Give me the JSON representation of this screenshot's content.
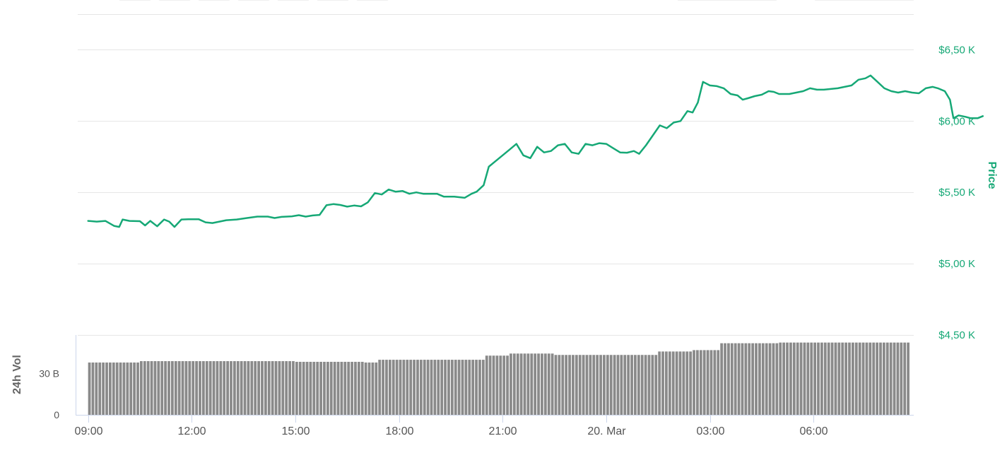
{
  "colors": {
    "price_line": "#16a876",
    "volume_bar": "#8a8a8a",
    "grid": "#e6e6e6"
  },
  "chart_data": [
    {
      "type": "line",
      "title": "",
      "ylabel": "Price",
      "ylim": [
        4500,
        6750
      ],
      "y_ticks": [
        4500,
        5000,
        5500,
        6000,
        6500
      ],
      "y_tick_labels": [
        "$4,50 K",
        "$5,00 K",
        "$5,50 K",
        "$6,00 K",
        "$6,50 K"
      ],
      "y_axis_position": "right",
      "grid": true,
      "x_range_hours": [
        -0.3,
        23.9
      ],
      "x_ticks": [
        0,
        3,
        6,
        9,
        12,
        15,
        18,
        21
      ],
      "x_tick_labels": [
        "09:00",
        "12:00",
        "15:00",
        "18:00",
        "21:00",
        "20. Mar",
        "03:00",
        "06:00"
      ],
      "series": [
        {
          "name": "",
          "points": [
            [
              0.0,
              5300
            ],
            [
              0.25,
              5295
            ],
            [
              0.5,
              5300
            ],
            [
              0.75,
              5265
            ],
            [
              0.9,
              5258
            ],
            [
              1.0,
              5310
            ],
            [
              1.2,
              5300
            ],
            [
              1.5,
              5298
            ],
            [
              1.65,
              5268
            ],
            [
              1.8,
              5300
            ],
            [
              2.0,
              5262
            ],
            [
              2.2,
              5310
            ],
            [
              2.35,
              5295
            ],
            [
              2.5,
              5258
            ],
            [
              2.7,
              5310
            ],
            [
              2.9,
              5312
            ],
            [
              3.2,
              5312
            ],
            [
              3.4,
              5290
            ],
            [
              3.6,
              5285
            ],
            [
              3.8,
              5295
            ],
            [
              4.0,
              5305
            ],
            [
              4.3,
              5310
            ],
            [
              4.6,
              5320
            ],
            [
              4.9,
              5330
            ],
            [
              5.2,
              5330
            ],
            [
              5.4,
              5320
            ],
            [
              5.6,
              5328
            ],
            [
              5.9,
              5332
            ],
            [
              6.1,
              5340
            ],
            [
              6.3,
              5330
            ],
            [
              6.5,
              5338
            ],
            [
              6.7,
              5342
            ],
            [
              6.9,
              5410
            ],
            [
              7.1,
              5418
            ],
            [
              7.3,
              5412
            ],
            [
              7.5,
              5400
            ],
            [
              7.7,
              5408
            ],
            [
              7.9,
              5402
            ],
            [
              8.1,
              5430
            ],
            [
              8.3,
              5495
            ],
            [
              8.5,
              5485
            ],
            [
              8.7,
              5520
            ],
            [
              8.9,
              5505
            ],
            [
              9.1,
              5510
            ],
            [
              9.3,
              5490
            ],
            [
              9.5,
              5500
            ],
            [
              9.7,
              5490
            ],
            [
              9.9,
              5490
            ],
            [
              10.1,
              5490
            ],
            [
              10.3,
              5470
            ],
            [
              10.6,
              5470
            ],
            [
              10.9,
              5462
            ],
            [
              11.1,
              5490
            ],
            [
              11.25,
              5505
            ],
            [
              11.45,
              5550
            ],
            [
              11.6,
              5680
            ],
            [
              11.8,
              5720
            ],
            [
              11.95,
              5750
            ],
            [
              12.2,
              5800
            ],
            [
              12.4,
              5840
            ],
            [
              12.6,
              5760
            ],
            [
              12.8,
              5740
            ],
            [
              13.0,
              5820
            ],
            [
              13.2,
              5780
            ],
            [
              13.4,
              5790
            ],
            [
              13.6,
              5830
            ],
            [
              13.8,
              5840
            ],
            [
              14.0,
              5780
            ],
            [
              14.2,
              5770
            ],
            [
              14.4,
              5840
            ],
            [
              14.6,
              5830
            ],
            [
              14.8,
              5845
            ],
            [
              15.0,
              5840
            ],
            [
              15.2,
              5810
            ],
            [
              15.4,
              5780
            ],
            [
              15.6,
              5778
            ],
            [
              15.8,
              5790
            ],
            [
              15.95,
              5770
            ],
            [
              16.15,
              5830
            ],
            [
              16.35,
              5900
            ],
            [
              16.55,
              5970
            ],
            [
              16.75,
              5950
            ],
            [
              16.95,
              5990
            ],
            [
              17.15,
              6000
            ],
            [
              17.35,
              6070
            ],
            [
              17.5,
              6060
            ],
            [
              17.65,
              6130
            ],
            [
              17.8,
              6275
            ],
            [
              18.0,
              6250
            ],
            [
              18.2,
              6245
            ],
            [
              18.4,
              6230
            ],
            [
              18.6,
              6190
            ],
            [
              18.8,
              6180
            ],
            [
              18.95,
              6150
            ],
            [
              19.1,
              6160
            ],
            [
              19.3,
              6175
            ],
            [
              19.5,
              6185
            ],
            [
              19.7,
              6210
            ],
            [
              19.85,
              6205
            ],
            [
              20.0,
              6190
            ],
            [
              20.3,
              6190
            ],
            [
              20.5,
              6200
            ],
            [
              20.7,
              6210
            ],
            [
              20.9,
              6230
            ],
            [
              21.1,
              6220
            ],
            [
              21.3,
              6220
            ],
            [
              21.5,
              6225
            ],
            [
              21.7,
              6230
            ],
            [
              21.9,
              6240
            ],
            [
              22.1,
              6250
            ],
            [
              22.3,
              6290
            ],
            [
              22.5,
              6300
            ],
            [
              22.65,
              6320
            ],
            [
              22.85,
              6275
            ],
            [
              23.05,
              6230
            ],
            [
              23.25,
              6210
            ],
            [
              23.45,
              6200
            ],
            [
              23.65,
              6210
            ],
            [
              23.85,
              6200
            ],
            [
              24.05,
              6195
            ],
            [
              24.25,
              6230
            ],
            [
              24.45,
              6240
            ],
            [
              24.6,
              6230
            ],
            [
              24.8,
              6210
            ],
            [
              24.95,
              6150
            ],
            [
              25.05,
              6020
            ],
            [
              25.2,
              6040
            ],
            [
              25.4,
              6030
            ],
            [
              25.55,
              6020
            ],
            [
              25.75,
              6020
            ],
            [
              25.9,
              6035
            ]
          ]
        }
      ]
    },
    {
      "type": "bar",
      "title": "",
      "ylabel": "24h Vol",
      "ylim": [
        0,
        58
      ],
      "y_ticks": [
        0,
        30
      ],
      "y_tick_labels": [
        "0",
        "30 B"
      ],
      "grid": false,
      "series": [
        {
          "name": "",
          "segments": [
            [
              0.0,
              1.5,
              38
            ],
            [
              1.5,
              6.0,
              39
            ],
            [
              6.0,
              8.0,
              38.5
            ],
            [
              8.0,
              8.4,
              38
            ],
            [
              8.4,
              11.5,
              40
            ],
            [
              11.5,
              12.2,
              43
            ],
            [
              12.2,
              13.5,
              44.5
            ],
            [
              13.5,
              16.5,
              43.5
            ],
            [
              16.5,
              17.5,
              46
            ],
            [
              17.5,
              18.3,
              47
            ],
            [
              18.3,
              20.0,
              52
            ],
            [
              20.0,
              24.5,
              52.5
            ],
            [
              24.5,
              25.0,
              54.5
            ],
            [
              25.0,
              26.0,
              52.5
            ]
          ]
        }
      ]
    }
  ]
}
